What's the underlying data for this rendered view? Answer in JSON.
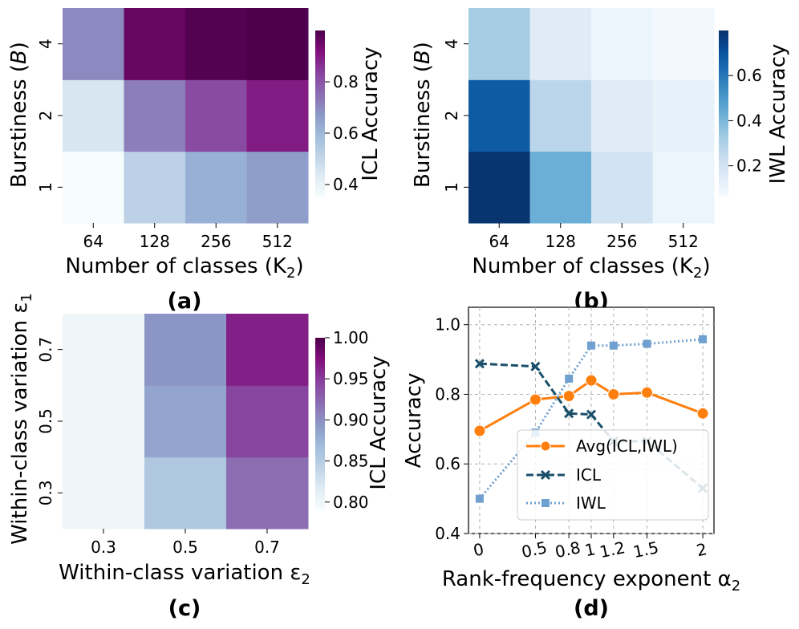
{
  "colors": {
    "bupu_scale": [
      "#f7fcfd",
      "#e0ecf4",
      "#bfd3e6",
      "#9ebcda",
      "#8c96c6",
      "#8c6bb1",
      "#88419d",
      "#810f7c",
      "#4d004b"
    ],
    "blues_scale": [
      "#f7fbff",
      "#deebf7",
      "#c6dbef",
      "#9ecae1",
      "#6baed6",
      "#4292c6",
      "#2171b5",
      "#08519c",
      "#08306b"
    ],
    "avg_line": "#ff7f0e",
    "icl_line": "#1a4f6a",
    "iwl_line": "#6fa0d0"
  },
  "captions": [
    "(a)",
    "(b)",
    "(c)",
    "(d)"
  ],
  "chart_data": [
    {
      "type": "heatmap",
      "caption": "(a)",
      "xlabel": "Number of classes (K",
      "xlabel_sub": "2",
      "xlabel_end": ")",
      "ylabel": "Burstiness (",
      "ylabel_var": "B",
      "ylabel_end": ")",
      "x_categories": [
        "64",
        "128",
        "256",
        "512"
      ],
      "y_categories": [
        "1",
        "2",
        "4"
      ],
      "values": [
        [
          0.35,
          0.52,
          0.62,
          0.66
        ],
        [
          0.45,
          0.72,
          0.82,
          0.9
        ],
        [
          0.7,
          0.96,
          0.99,
          1.0
        ]
      ],
      "colorbar": {
        "label": "ICL Accuracy",
        "ticks": [
          "0.4",
          "0.6",
          "0.8"
        ],
        "range": [
          0.35,
          1.0
        ],
        "tick_values": [
          0.4,
          0.6,
          0.8
        ]
      },
      "colormap": "BuPu"
    },
    {
      "type": "heatmap",
      "caption": "(b)",
      "xlabel": "Number of classes (K",
      "xlabel_sub": "2",
      "xlabel_end": ")",
      "ylabel": "Burstiness (",
      "ylabel_var": "B",
      "ylabel_end": ")",
      "x_categories": [
        "64",
        "128",
        "256",
        "512"
      ],
      "y_categories": [
        "1",
        "2",
        "4"
      ],
      "values": [
        [
          0.79,
          0.43,
          0.2,
          0.1
        ],
        [
          0.68,
          0.27,
          0.15,
          0.12
        ],
        [
          0.32,
          0.15,
          0.1,
          0.08
        ]
      ],
      "colorbar": {
        "label": "IWL Accuracy",
        "ticks": [
          "0.2",
          "0.4",
          "0.6"
        ],
        "range": [
          0.06,
          0.8
        ],
        "tick_values": [
          0.2,
          0.4,
          0.6
        ]
      },
      "colormap": "Blues"
    },
    {
      "type": "heatmap",
      "caption": "(c)",
      "xlabel": "Within-class variation ε",
      "xlabel_sub": "2",
      "ylabel": "Within-class variation ε",
      "ylabel_sub": "1",
      "x_categories": [
        "0.3",
        "0.5",
        "0.7"
      ],
      "y_categories": [
        "0.3",
        "0.5",
        "0.7"
      ],
      "values": [
        [
          0.8,
          0.855,
          0.92
        ],
        [
          0.8,
          0.885,
          0.945
        ],
        [
          0.8,
          0.895,
          0.965
        ]
      ],
      "colorbar": {
        "label": "ICL Accuracy",
        "ticks": [
          "0.80",
          "0.85",
          "0.90",
          "0.95",
          "1.00"
        ],
        "range": [
          0.79,
          1.0
        ],
        "tick_values": [
          0.8,
          0.85,
          0.9,
          0.95,
          1.0
        ]
      },
      "colormap": "BuPu"
    },
    {
      "type": "line",
      "caption": "(d)",
      "xlabel": "Rank-frequency exponent α",
      "xlabel_sub": "2",
      "ylabel": "Accuracy",
      "x": [
        0,
        0.5,
        0.8,
        1,
        1.2,
        1.5,
        2
      ],
      "x_tick_labels": [
        "0",
        "0.5",
        "0.8",
        "1",
        "1.2",
        "1.5",
        "2"
      ],
      "xlim": [
        -0.1,
        2.1
      ],
      "ylim": [
        0.4,
        1.05
      ],
      "y_ticks": [
        "0.4",
        "0.6",
        "0.8",
        "1.0"
      ],
      "y_tick_values": [
        0.4,
        0.6,
        0.8,
        1.0
      ],
      "grid": true,
      "legend_position": "center-right",
      "series": [
        {
          "name": "Avg(ICL,IWL)",
          "values": [
            0.695,
            0.785,
            0.795,
            0.84,
            0.8,
            0.805,
            0.745
          ],
          "style": "solid",
          "marker": "circle",
          "color": "#ff7f0e"
        },
        {
          "name": "ICL",
          "values": [
            0.888,
            0.88,
            0.745,
            0.742,
            0.665,
            0.665,
            0.53
          ],
          "style": "dashed",
          "marker": "x",
          "color": "#1a4f6a"
        },
        {
          "name": "IWL",
          "values": [
            0.5,
            0.69,
            0.845,
            0.94,
            0.94,
            0.945,
            0.958
          ],
          "style": "dotted",
          "marker": "square",
          "color": "#6fa0d0"
        }
      ]
    }
  ]
}
